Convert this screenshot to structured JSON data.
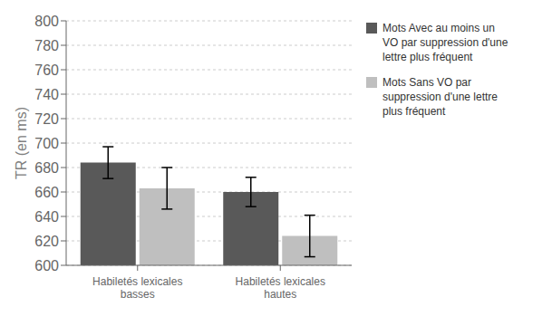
{
  "chart_data": {
    "type": "bar",
    "categories": [
      "Habiletés lexicales\nbasses",
      "Habiletés lexicales\nhautes"
    ],
    "series": [
      {
        "name": "Mots Avec au moins un\nVO par suppression d'une\nlettre plus fréquent",
        "color": "#595959",
        "values": [
          684,
          660
        ],
        "errors": [
          13,
          12
        ]
      },
      {
        "name": "Mots Sans VO par\nsuppression d'une lettre\nplus fréquent",
        "color": "#bfbfbf",
        "values": [
          663,
          624
        ],
        "errors": [
          17,
          17
        ]
      }
    ],
    "ylabel": "TR (en ms)",
    "ylim": [
      600,
      800
    ],
    "yticks": [
      600,
      620,
      640,
      660,
      680,
      700,
      720,
      740,
      760,
      780,
      800
    ],
    "grid": true,
    "legend": "right"
  }
}
